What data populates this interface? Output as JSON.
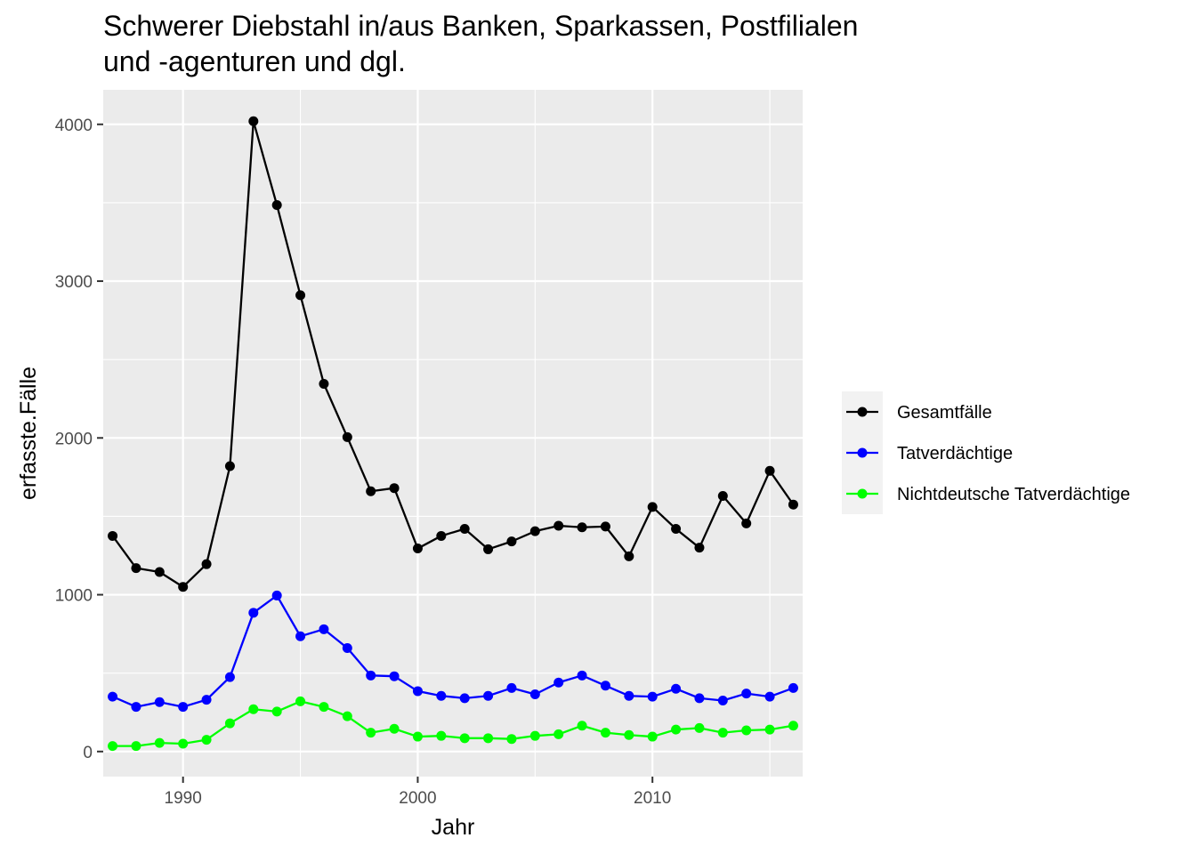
{
  "chart_data": {
    "type": "line",
    "title": "Schwerer Diebstahl in/aus Banken, Sparkassen, Postfilialen und -agenturen und dgl.",
    "title_lines": [
      "Schwerer Diebstahl in/aus Banken, Sparkassen, Postfilialen",
      "und -agenturen und dgl."
    ],
    "xlabel": "Jahr",
    "ylabel": "erfasste.Fälle",
    "xlim": [
      1986.6,
      2016.4
    ],
    "ylim": [
      -160,
      4220
    ],
    "x_ticks": [
      {
        "value": 1990,
        "label": "1990"
      },
      {
        "value": 2000,
        "label": "2000"
      },
      {
        "value": 2010,
        "label": "2010"
      }
    ],
    "x_minor_ticks": [
      1995,
      2005,
      2015
    ],
    "y_ticks": [
      {
        "value": 0,
        "label": "0"
      },
      {
        "value": 1000,
        "label": "1000"
      },
      {
        "value": 2000,
        "label": "2000"
      },
      {
        "value": 3000,
        "label": "3000"
      },
      {
        "value": 4000,
        "label": "4000"
      }
    ],
    "y_minor_ticks": [
      500,
      1500,
      2500,
      3500
    ],
    "grid": true,
    "legend_position": "right",
    "x": [
      1987,
      1988,
      1989,
      1990,
      1991,
      1992,
      1993,
      1994,
      1995,
      1996,
      1997,
      1998,
      1999,
      2000,
      2001,
      2002,
      2003,
      2004,
      2005,
      2006,
      2007,
      2008,
      2009,
      2010,
      2011,
      2012,
      2013,
      2014,
      2015,
      2016
    ],
    "series": [
      {
        "name": "Gesamtfälle",
        "color": "#000000",
        "values": [
          1375,
          1170,
          1145,
          1050,
          1195,
          1820,
          4020,
          3485,
          2910,
          2345,
          2005,
          1660,
          1680,
          1295,
          1375,
          1420,
          1290,
          1340,
          1405,
          1440,
          1430,
          1435,
          1245,
          1560,
          1420,
          1300,
          1630,
          1455,
          1790,
          1575
        ]
      },
      {
        "name": "Tatverdächtige",
        "color": "#0000ff",
        "values": [
          350,
          285,
          315,
          285,
          330,
          475,
          885,
          995,
          735,
          780,
          660,
          485,
          480,
          385,
          355,
          340,
          355,
          405,
          365,
          440,
          485,
          420,
          355,
          350,
          400,
          340,
          325,
          370,
          350,
          405
        ]
      },
      {
        "name": "Nichtdeutsche Tatverdächtige",
        "color": "#00ff00",
        "values": [
          35,
          35,
          55,
          50,
          75,
          180,
          270,
          255,
          320,
          285,
          225,
          120,
          145,
          95,
          100,
          85,
          85,
          80,
          100,
          110,
          165,
          120,
          105,
          95,
          140,
          150,
          120,
          135,
          140,
          165
        ]
      }
    ]
  }
}
